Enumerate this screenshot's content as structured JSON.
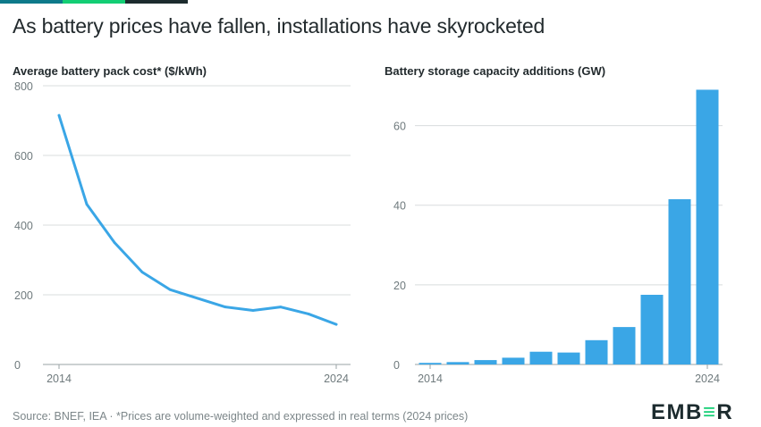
{
  "header": {
    "title": "As battery prices have fallen, installations have skyrocketed"
  },
  "footer": {
    "source": "Source: BNEF, IEA · *Prices are volume-weighted and expressed in real terms (2024 prices)",
    "logo_left": "EMB",
    "logo_mid": "≡",
    "logo_right": "R"
  },
  "colors": {
    "series": "#3aa6e6",
    "grid": "#d8dcdd",
    "accent_green": "#13ce74",
    "accent_teal": "#0e7a8a",
    "accent_dark": "#1c2b2e"
  },
  "chart_data": [
    {
      "type": "line",
      "title": "Average battery pack cost* ($/kWh)",
      "x": [
        2014,
        2015,
        2016,
        2017,
        2018,
        2019,
        2020,
        2021,
        2022,
        2023,
        2024
      ],
      "series": [
        {
          "values": [
            715,
            460,
            350,
            265,
            215,
            190,
            165,
            155,
            165,
            145,
            115
          ]
        }
      ],
      "xticks": [
        "2014",
        "2024"
      ],
      "yticks": [
        0,
        200,
        400,
        600,
        800
      ],
      "ylim": [
        0,
        800
      ],
      "grid": true
    },
    {
      "type": "bar",
      "title": "Battery storage capacity additions (GW)",
      "categories": [
        "2014",
        "2015",
        "2016",
        "2017",
        "2018",
        "2019",
        "2020",
        "2021",
        "2022",
        "2023",
        "2024"
      ],
      "series": [
        {
          "values": [
            0.4,
            0.6,
            1.1,
            1.7,
            3.2,
            3.0,
            6.1,
            9.4,
            17.5,
            41.5,
            69.0
          ]
        }
      ],
      "xticks": [
        "2014",
        "2024"
      ],
      "yticks": [
        0,
        20,
        40,
        60
      ],
      "ylim": [
        0,
        70
      ],
      "grid": true
    }
  ]
}
